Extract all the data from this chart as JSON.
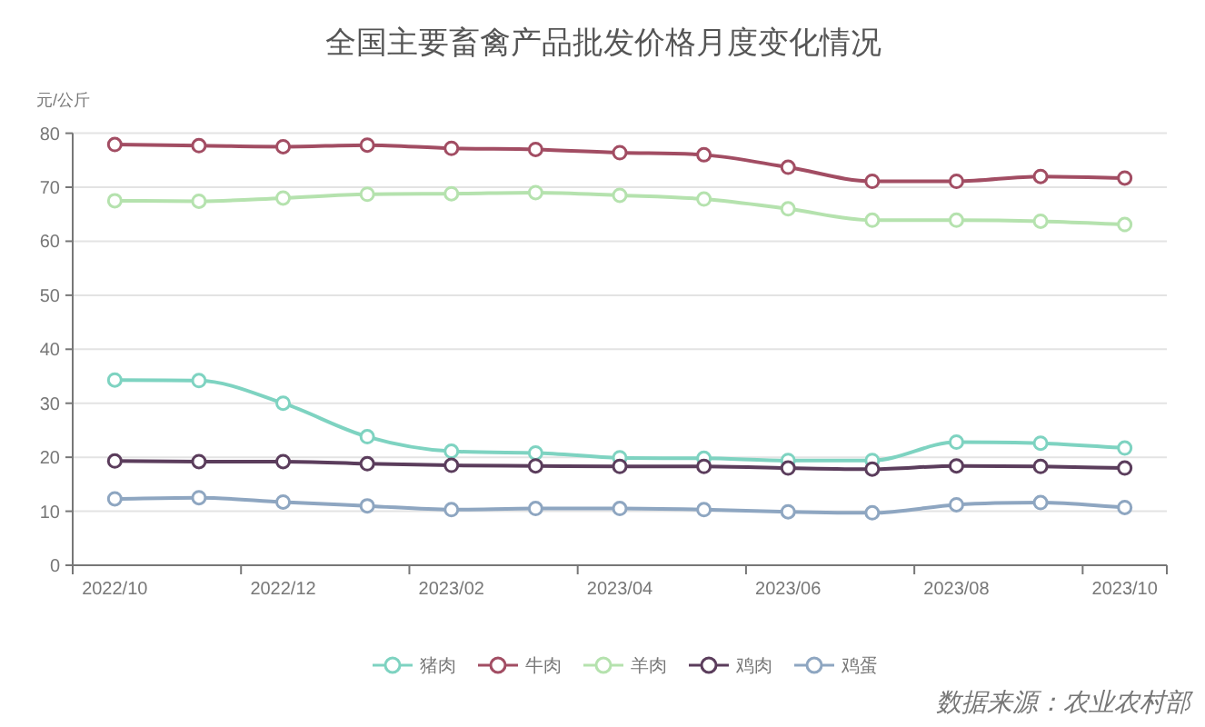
{
  "chart_data": {
    "type": "line",
    "title": "全国主要畜禽产品批发价格月度变化情况",
    "ylabel": "元/公斤",
    "categories": [
      "2022/10",
      null,
      "2022/12",
      null,
      "2023/02",
      null,
      "2023/04",
      null,
      "2023/06",
      null,
      "2023/08",
      null,
      "2023/10"
    ],
    "series": [
      {
        "name": "猪肉",
        "color": "#7ed3c1",
        "values": [
          34.3,
          34.2,
          30.0,
          23.8,
          21.1,
          20.8,
          19.9,
          19.8,
          19.4,
          19.4,
          22.8,
          22.6,
          21.7
        ]
      },
      {
        "name": "牛肉",
        "color": "#a24d63",
        "values": [
          77.9,
          77.7,
          77.5,
          77.8,
          77.2,
          77.0,
          76.4,
          76.0,
          73.7,
          71.1,
          71.1,
          72.0,
          71.7
        ]
      },
      {
        "name": "羊肉",
        "color": "#b5e2ae",
        "values": [
          67.5,
          67.4,
          68.0,
          68.7,
          68.8,
          69.0,
          68.5,
          67.8,
          66.0,
          63.9,
          63.9,
          63.7,
          63.1
        ]
      },
      {
        "name": "鸡肉",
        "color": "#5b3d5c",
        "values": [
          19.3,
          19.2,
          19.2,
          18.8,
          18.5,
          18.4,
          18.3,
          18.3,
          18.0,
          17.8,
          18.4,
          18.3,
          18.0
        ]
      },
      {
        "name": "鸡蛋",
        "color": "#8ea6c1",
        "values": [
          12.3,
          12.5,
          11.7,
          11.0,
          10.3,
          10.5,
          10.5,
          10.3,
          9.9,
          9.7,
          11.2,
          11.6,
          10.7
        ]
      }
    ],
    "ylim": [
      0,
      80
    ],
    "yticks": [
      0,
      10,
      20,
      30,
      40,
      50,
      60,
      70,
      80
    ],
    "grid": "y",
    "legend": "bottom",
    "marker": "circle",
    "annotations": [
      "数据来源：农业农村部"
    ]
  }
}
